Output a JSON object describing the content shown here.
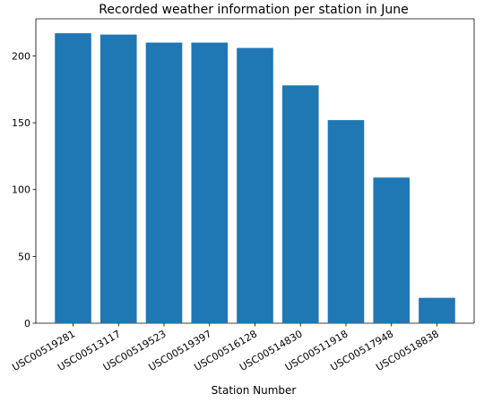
{
  "chart_data": {
    "type": "bar",
    "title": "Recorded weather information per station in June",
    "xlabel": "Station Number",
    "ylabel": "",
    "categories": [
      "USC00519281",
      "USC00513117",
      "USC00519523",
      "USC00519397",
      "USC00516128",
      "USC00514830",
      "USC00511918",
      "USC00517948",
      "USC00518838"
    ],
    "values": [
      217,
      216,
      210,
      210,
      206,
      178,
      152,
      109,
      19
    ],
    "yticks": [
      0,
      50,
      100,
      150,
      200
    ],
    "ylim": [
      0,
      227.8
    ],
    "grid": false,
    "legend": "none",
    "bar_color": "#1f77b4"
  }
}
